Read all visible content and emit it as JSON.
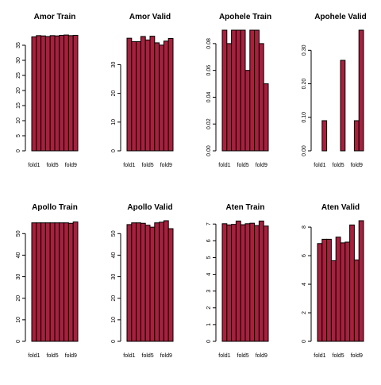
{
  "style": {
    "bar_fill": "#a8203d",
    "bar_stroke": "#000000",
    "axis_color": "#000000"
  },
  "chart_data": [
    {
      "type": "bar",
      "title": "Amor Train",
      "categories": [
        "fold1",
        "fold2",
        "fold3",
        "fold4",
        "fold5",
        "fold6",
        "fold7",
        "fold8",
        "fold9",
        "fold10"
      ],
      "xtick_labels": [
        "fold1",
        "fold5",
        "fold9"
      ],
      "values": [
        37.8,
        38.2,
        38.1,
        37.9,
        38.2,
        38.1,
        38.3,
        38.4,
        38.2,
        38.3
      ],
      "ylim": [
        0,
        40
      ],
      "yticks": [
        "0",
        "5",
        "10",
        "15",
        "20",
        "25",
        "30",
        "35"
      ]
    },
    {
      "type": "bar",
      "title": "Amor Valid",
      "categories": [
        "fold1",
        "fold2",
        "fold3",
        "fold4",
        "fold5",
        "fold6",
        "fold7",
        "fold8",
        "fold9",
        "fold10"
      ],
      "xtick_labels": [
        "fold1",
        "fold5",
        "fold9"
      ],
      "values": [
        39.2,
        38.0,
        38.0,
        39.8,
        38.6,
        39.9,
        37.6,
        36.8,
        38.2,
        39.1
      ],
      "ylim": [
        0,
        42
      ],
      "yticks": [
        "0",
        "10",
        "20",
        "30"
      ]
    },
    {
      "type": "bar",
      "title": "Apohele Train",
      "categories": [
        "fold1",
        "fold2",
        "fold3",
        "fold4",
        "fold5",
        "fold6",
        "fold7",
        "fold8",
        "fold9",
        "fold10"
      ],
      "xtick_labels": [
        "fold1",
        "fold5",
        "fold9"
      ],
      "values": [
        0.09,
        0.08,
        0.09,
        0.09,
        0.09,
        0.06,
        0.09,
        0.09,
        0.08,
        0.05
      ],
      "ylim": [
        0,
        0.09
      ],
      "yticks": [
        "0.00",
        "0.02",
        "0.04",
        "0.06",
        "0.08"
      ]
    },
    {
      "type": "bar",
      "title": "Apohele Valid",
      "categories": [
        "fold1",
        "fold2",
        "fold3",
        "fold4",
        "fold5",
        "fold6",
        "fold7",
        "fold8",
        "fold9",
        "fold10"
      ],
      "xtick_labels": [
        "fold1",
        "fold5",
        "fold9"
      ],
      "values": [
        0.0,
        0.09,
        0.0,
        0.0,
        0.0,
        0.27,
        0.0,
        0.0,
        0.09,
        0.36
      ],
      "ylim": [
        0,
        0.36
      ],
      "yticks": [
        "0.00",
        "0.10",
        "0.20",
        "0.30"
      ]
    },
    {
      "type": "bar",
      "title": "Apollo Train",
      "categories": [
        "fold1",
        "fold2",
        "fold3",
        "fold4",
        "fold5",
        "fold6",
        "fold7",
        "fold8",
        "fold9",
        "fold10"
      ],
      "xtick_labels": [
        "fold1",
        "fold5",
        "fold9"
      ],
      "values": [
        55.0,
        55.0,
        55.0,
        55.0,
        55.0,
        55.0,
        55.0,
        55.0,
        54.8,
        55.4
      ],
      "ylim": [
        0,
        56
      ],
      "yticks": [
        "0",
        "10",
        "20",
        "30",
        "40",
        "50"
      ]
    },
    {
      "type": "bar",
      "title": "Apollo Valid",
      "categories": [
        "fold1",
        "fold2",
        "fold3",
        "fold4",
        "fold5",
        "fold6",
        "fold7",
        "fold8",
        "fold9",
        "fold10"
      ],
      "xtick_labels": [
        "fold1",
        "fold5",
        "fold9"
      ],
      "values": [
        54.2,
        55.0,
        55.0,
        54.8,
        53.9,
        53.0,
        55.0,
        55.3,
        56.0,
        52.3
      ],
      "ylim": [
        0,
        56
      ],
      "yticks": [
        "0",
        "10",
        "20",
        "30",
        "40",
        "50"
      ]
    },
    {
      "type": "bar",
      "title": "Aten Train",
      "categories": [
        "fold1",
        "fold2",
        "fold3",
        "fold4",
        "fold5",
        "fold6",
        "fold7",
        "fold8",
        "fold9",
        "fold10"
      ],
      "xtick_labels": [
        "fold1",
        "fold5",
        "fold9"
      ],
      "values": [
        7.02,
        6.95,
        6.98,
        7.18,
        6.96,
        7.02,
        7.05,
        6.91,
        7.18,
        6.88
      ],
      "ylim": [
        0,
        7.2
      ],
      "yticks": [
        "0",
        "1",
        "2",
        "3",
        "4",
        "5",
        "6",
        "7"
      ]
    },
    {
      "type": "bar",
      "title": "Aten Valid",
      "categories": [
        "fold1",
        "fold2",
        "fold3",
        "fold4",
        "fold5",
        "fold6",
        "fold7",
        "fold8",
        "fold9",
        "fold10"
      ],
      "xtick_labels": [
        "fold1",
        "fold5",
        "fold9"
      ],
      "values": [
        6.85,
        7.15,
        7.15,
        5.65,
        7.3,
        6.9,
        6.95,
        8.15,
        5.7,
        8.45
      ],
      "ylim": [
        0,
        8.45
      ],
      "yticks": [
        "0",
        "2",
        "4",
        "6",
        "8"
      ]
    }
  ]
}
